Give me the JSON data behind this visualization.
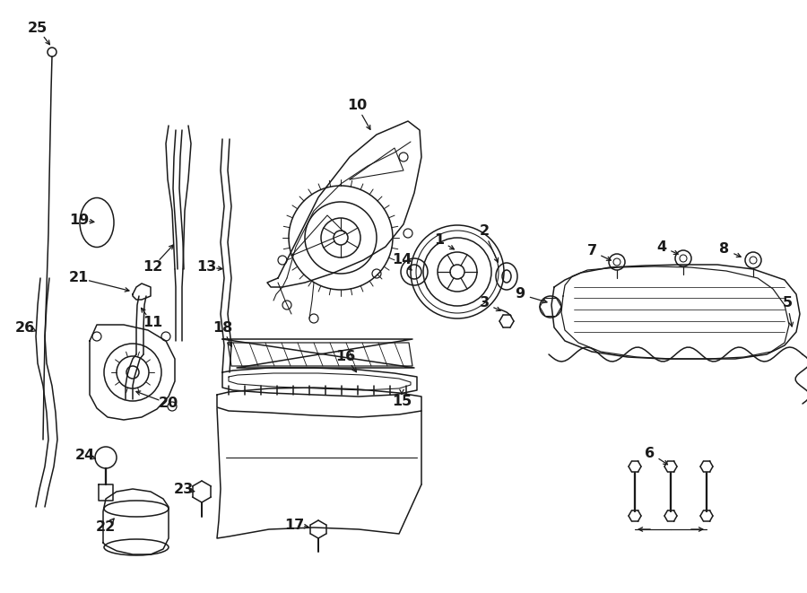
{
  "bg_color": "#ffffff",
  "line_color": "#1a1a1a",
  "label_color": "#1a1a1a",
  "figsize": [
    9.0,
    6.61
  ],
  "dpi": 100,
  "lw": 1.1,
  "label_fontsize": 11.5
}
